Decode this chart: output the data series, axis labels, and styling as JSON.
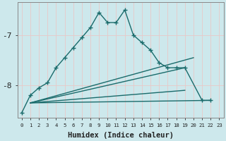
{
  "xlabel": "Humidex (Indice chaleur)",
  "background_color": "#cde8ec",
  "grid_color": "#b0d8de",
  "line_color": "#1a6b6b",
  "ylim": [
    -8.65,
    -6.35
  ],
  "xlim": [
    -0.5,
    23.5
  ],
  "yticks": [
    -8,
    -7
  ],
  "ytick_labels": [
    "-8",
    "-7"
  ],
  "xticks": [
    0,
    1,
    2,
    3,
    4,
    5,
    6,
    7,
    8,
    9,
    10,
    11,
    12,
    13,
    14,
    15,
    16,
    17,
    18,
    19,
    20,
    21,
    22,
    23
  ],
  "curve_x": [
    0,
    1,
    2,
    3,
    4,
    5,
    6,
    7,
    8,
    9,
    10,
    11,
    12,
    13,
    14,
    15,
    16,
    17,
    18,
    19,
    21,
    22
  ],
  "curve_y": [
    -8.55,
    -8.2,
    -8.05,
    -7.95,
    -7.65,
    -7.45,
    -7.25,
    -7.05,
    -6.85,
    -6.55,
    -6.75,
    -6.75,
    -6.5,
    -7.0,
    -7.15,
    -7.3,
    -7.55,
    -7.65,
    -7.65,
    -7.65,
    -8.3,
    -8.3
  ],
  "straight_lines": [
    {
      "x": [
        1,
        19
      ],
      "y": [
        -8.35,
        -7.65
      ]
    },
    {
      "x": [
        1,
        20
      ],
      "y": [
        -8.35,
        -7.45
      ]
    },
    {
      "x": [
        1,
        22
      ],
      "y": [
        -8.35,
        -8.3
      ]
    },
    {
      "x": [
        1,
        19
      ],
      "y": [
        -8.35,
        -8.1
      ]
    }
  ]
}
